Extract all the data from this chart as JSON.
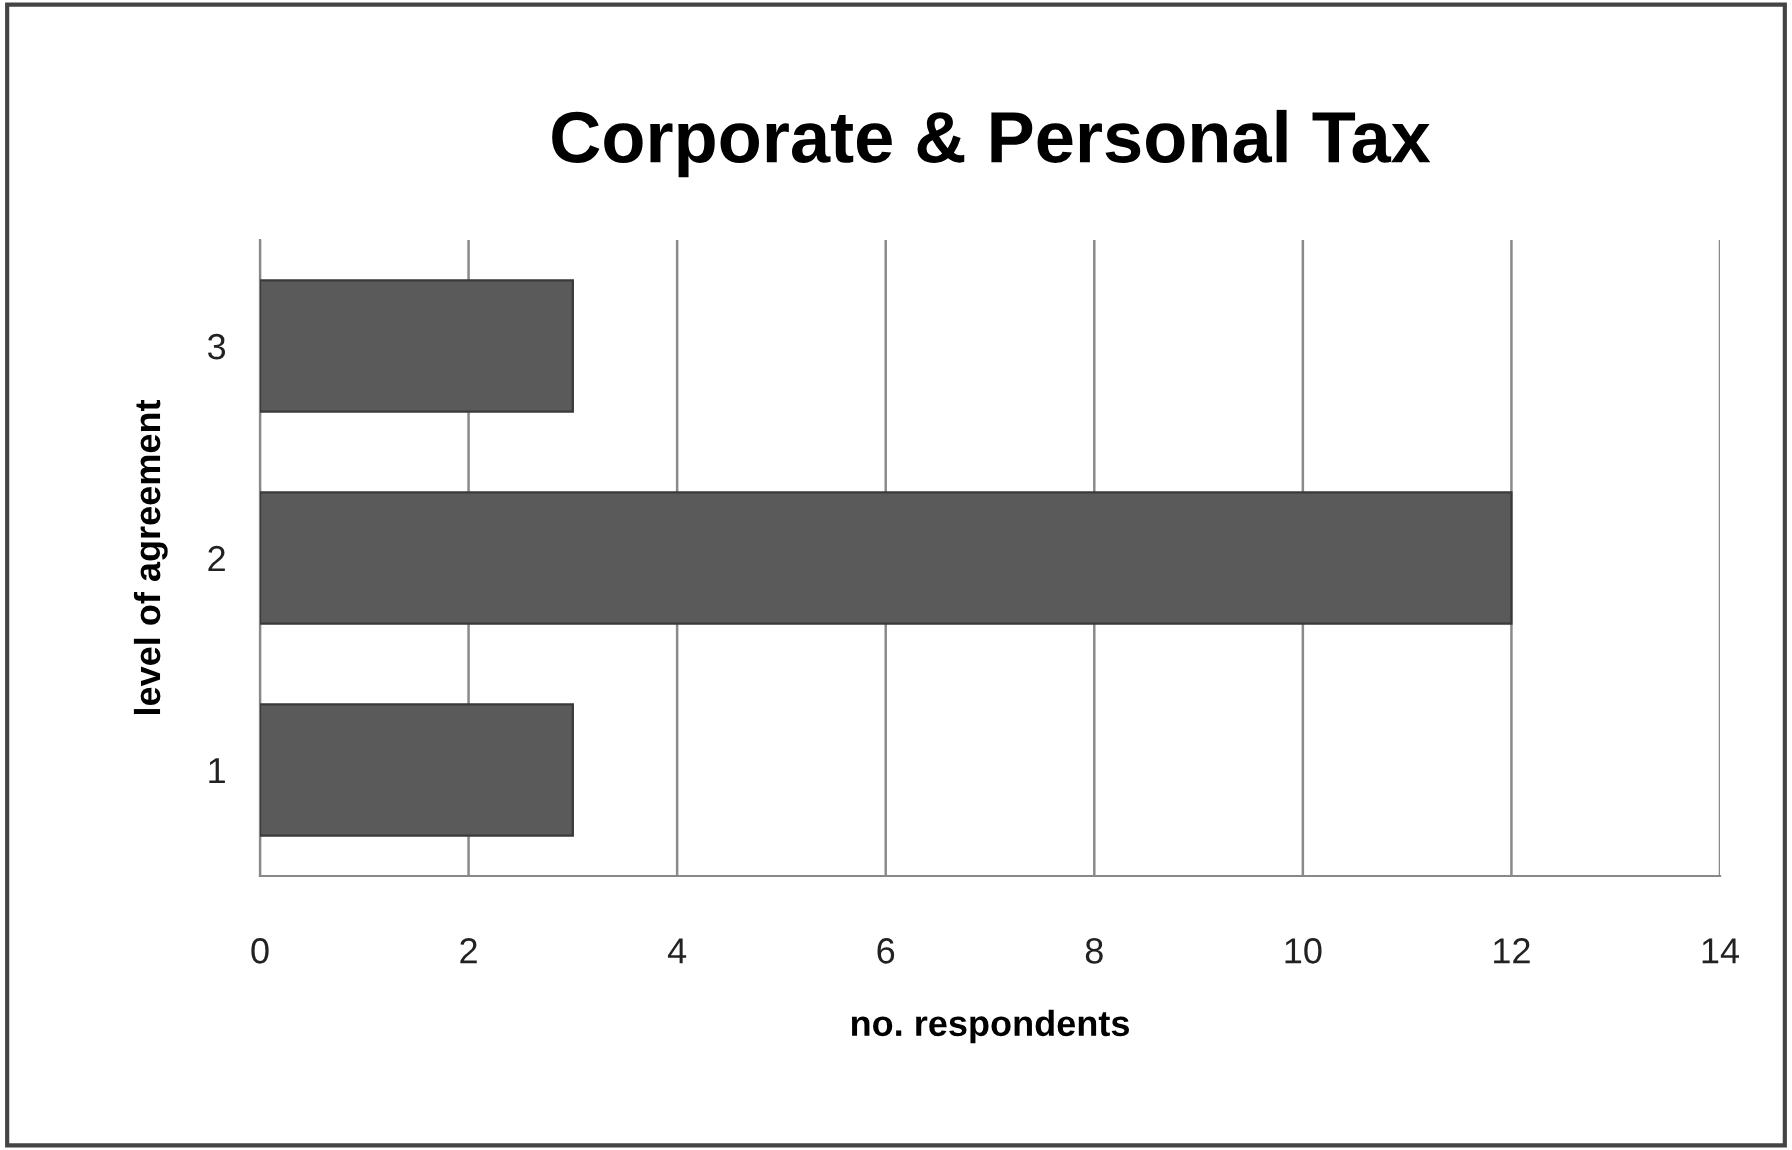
{
  "chart_data": {
    "type": "bar",
    "orientation": "horizontal",
    "title": "Corporate & Personal Tax",
    "xlabel": "no. respondents",
    "ylabel": "level of agreement",
    "categories": [
      "3",
      "2",
      "1"
    ],
    "values": [
      3,
      12,
      3
    ],
    "color": "#5a5a5a",
    "xlim": [
      0,
      14
    ],
    "xticks": [
      0,
      2,
      4,
      6,
      8,
      10,
      12,
      14
    ],
    "grid": "x"
  }
}
